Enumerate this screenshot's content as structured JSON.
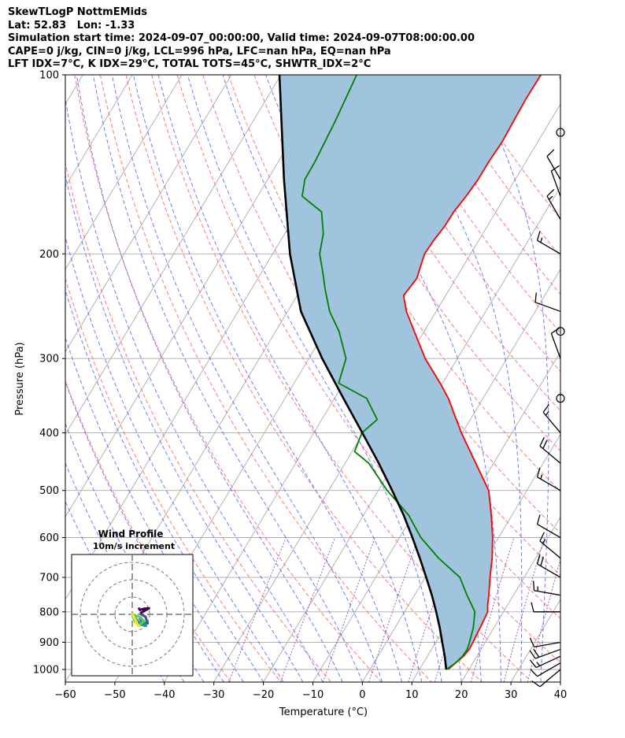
{
  "header": {
    "line1": "SkewTLogP NottmEMids",
    "line2": "Lat: 52.83   Lon: -1.33",
    "line3": "Simulation start time: 2024-09-07_00:00:00, Valid time: 2024-09-07T08:00:00.00",
    "line4": "CAPE=0 j/kg, CIN=0 j/kg, LCL=996 hPa, LFC=nan hPa, EQ=nan hPa",
    "line5": "LFT IDX=7°C, K IDX=29°C, TOTAL TOTS=45°C, SHWTR_IDX=2°C"
  },
  "chart_data": {
    "type": "line",
    "chart_kind": "skew-T log-P diagram",
    "xlabel": "Temperature (°C)",
    "ylabel": "Pressure (hPa)",
    "xlim": [
      -60,
      40
    ],
    "ylim": [
      1050,
      100
    ],
    "y_scale": "log",
    "x_ticks": [
      -60,
      -50,
      -40,
      -30,
      -20,
      -10,
      0,
      10,
      20,
      30,
      40
    ],
    "y_ticks": [
      100,
      200,
      300,
      400,
      500,
      600,
      700,
      800,
      900,
      1000
    ],
    "grid": true,
    "colors": {
      "temperature": "#ff0000",
      "dewpoint": "#008000",
      "parcel": "#000000",
      "cape_fill": "#a0c4de",
      "dry_adiabats": "#ff6060",
      "moist_adiabats": "#4a5cff",
      "mixing_ratio": "#8b3fbf",
      "isotherms": "#aaaaaa"
    },
    "series": [
      {
        "key": "temperature",
        "pressure": [
          1000,
          975,
          950,
          925,
          900,
          850,
          800,
          780,
          750,
          700,
          650,
          600,
          550,
          500,
          450,
          400,
          350,
          330,
          300,
          270,
          250,
          235,
          220,
          210,
          200,
          190,
          180,
          170,
          160,
          150,
          140,
          130,
          120,
          110,
          100
        ],
        "values": [
          15.8,
          16.5,
          17.3,
          17.6,
          17.5,
          17.2,
          16.8,
          16.0,
          15.0,
          13.1,
          11.2,
          8.8,
          5.8,
          2.3,
          -3.6,
          -10.2,
          -17.0,
          -20.5,
          -26.5,
          -32.0,
          -36.0,
          -38.5,
          -37.9,
          -38.6,
          -39.3,
          -39.1,
          -38.6,
          -38.5,
          -37.9,
          -37.5,
          -37.5,
          -37.2,
          -37.4,
          -37.6,
          -37.5
        ]
      },
      {
        "key": "dewpoint",
        "pressure": [
          1000,
          975,
          950,
          925,
          900,
          850,
          800,
          780,
          750,
          700,
          650,
          600,
          550,
          500,
          450,
          430,
          400,
          380,
          350,
          330,
          300,
          270,
          250,
          230,
          215,
          200,
          185,
          170,
          160,
          150,
          140,
          120,
          100
        ],
        "values": [
          15.4,
          16.5,
          17.1,
          17.2,
          16.8,
          15.8,
          14.2,
          12.8,
          10.6,
          7.0,
          0.4,
          -5.7,
          -10.9,
          -18.2,
          -25.2,
          -29.5,
          -30.3,
          -28.8,
          -33.5,
          -41.0,
          -42.5,
          -47.2,
          -51.5,
          -55.0,
          -57.6,
          -60.5,
          -62.2,
          -65.2,
          -71.0,
          -72.5,
          -72.6,
          -73.4,
          -74.7
        ]
      },
      {
        "key": "parcel",
        "pressure": [
          1000,
          950,
          900,
          850,
          800,
          750,
          700,
          650,
          600,
          550,
          500,
          450,
          400,
          350,
          300,
          250,
          200,
          150,
          100
        ],
        "values": [
          15.4,
          13.5,
          11.3,
          9.0,
          6.4,
          3.5,
          0.2,
          -3.4,
          -7.4,
          -11.9,
          -17.2,
          -23.2,
          -30.2,
          -38.2,
          -47.3,
          -57.3,
          -66.5,
          -76.7,
          -90.3
        ]
      }
    ],
    "wind_barbs": {
      "pressure": [
        1000,
        975,
        950,
        925,
        900,
        800,
        750,
        700,
        650,
        600,
        500,
        450,
        400,
        350,
        300,
        270,
        250,
        200,
        175,
        160,
        150,
        125
      ],
      "speed_kt": [
        10,
        10,
        15,
        20,
        10,
        10,
        15,
        20,
        15,
        10,
        15,
        20,
        15,
        0,
        10,
        0,
        10,
        15,
        15,
        10,
        10,
        0
      ],
      "direction_deg": [
        230,
        240,
        245,
        250,
        260,
        270,
        280,
        300,
        310,
        300,
        300,
        310,
        320,
        0,
        340,
        0,
        290,
        300,
        330,
        340,
        330,
        0
      ]
    },
    "hodograph": {
      "title": "Wind Profile",
      "subtitle": "10m/s increment"
    }
  }
}
